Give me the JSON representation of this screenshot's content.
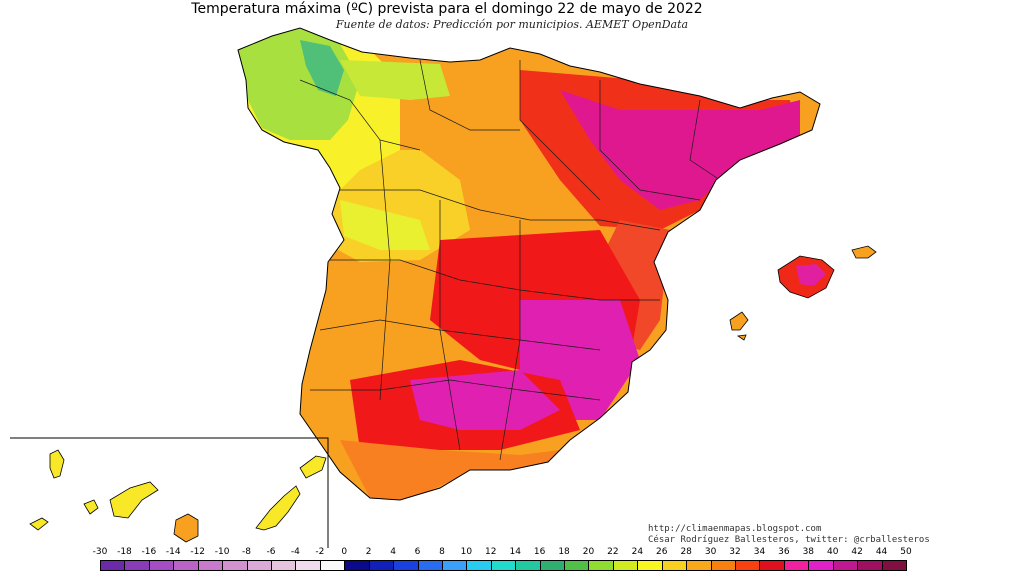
{
  "title": "Temperatura máxima (ºC) prevista para el domingo 22 de mayo de 2022",
  "subtitle": "Fuente de datos: Predicción por municipios. AEMET OpenData",
  "credits": {
    "blog": "http://climaenmapas.blogspot.com",
    "author": "César Rodríguez Ballesteros, twitter: @crballesteros"
  },
  "legend": {
    "ticks": [
      "-30",
      "-18",
      "-16",
      "-14",
      "-12",
      "-10",
      "-8",
      "-6",
      "-4",
      "-2",
      "0",
      "2",
      "4",
      "6",
      "8",
      "10",
      "12",
      "14",
      "16",
      "18",
      "20",
      "22",
      "24",
      "26",
      "28",
      "30",
      "32",
      "34",
      "36",
      "38",
      "40",
      "42",
      "44",
      "50"
    ],
    "colors": [
      "#6b2aa8",
      "#8a3cb8",
      "#a64cc4",
      "#bb62c9",
      "#c97ace",
      "#d291cf",
      "#dcaad6",
      "#e6c4e0",
      "#f0dcec",
      "#fafafa",
      "#0a0a8a",
      "#1020b8",
      "#1a40e0",
      "#2a6cf0",
      "#3aa0f8",
      "#28ccf0",
      "#20dccc",
      "#22c8a0",
      "#30b070",
      "#50c048",
      "#90dc30",
      "#d0ec20",
      "#f8f820",
      "#f8d020",
      "#f8a818",
      "#f88010",
      "#f84010",
      "#e0101e",
      "#f020a0",
      "#e020c8",
      "#c01890",
      "#a01060",
      "#801040"
    ]
  },
  "colors": {
    "sea": "#ffffff",
    "coast": "#000000",
    "boundaries": "#1a1a1a",
    "hot_core": "#e0189a",
    "very_hot": "#f01818",
    "warm": "#f8a020",
    "mild": "#f8e838",
    "cool_north": "#90e040"
  }
}
